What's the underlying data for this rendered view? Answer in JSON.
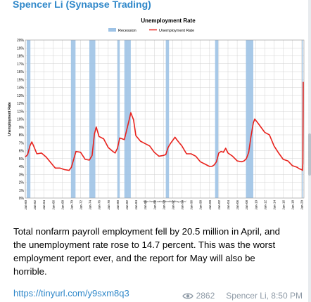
{
  "message": {
    "author": "Spencer Li (Synapse Trading)",
    "text": "Total nonfarm payroll employment fell by 20.5 million in April, and the unemployment rate rose to 14.7 percent. This was the worst employment report ever, and the report for May will also be horrible.",
    "link": "https://tinyurl.com/y9sxm8q3",
    "views": "2862",
    "signature": "Spencer Li, 8:50 PM"
  },
  "chart_data": {
    "type": "line",
    "title": "Unemployment Rate",
    "ylabel": "Unemployment Rate",
    "source": "http://www.calculatedriskblog.com/",
    "ylim": [
      0,
      20
    ],
    "yticks": [
      "0%",
      "1%",
      "2%",
      "3%",
      "4%",
      "5%",
      "6%",
      "7%",
      "8%",
      "9%",
      "10%",
      "11%",
      "12%",
      "13%",
      "14%",
      "15%",
      "16%",
      "17%",
      "18%",
      "19%",
      "20%"
    ],
    "xlim": [
      1960,
      2020.5
    ],
    "xticks": [
      "Jan-60",
      "Jan-62",
      "Jan-64",
      "Jan-66",
      "Jan-68",
      "Jan-70",
      "Jan-72",
      "Jan-74",
      "Jan-76",
      "Jan-78",
      "Jan-80",
      "Jan-82",
      "Jan-84",
      "Jan-86",
      "Jan-88",
      "Jan-90",
      "Jan-92",
      "Jan-94",
      "Jan-96",
      "Jan-98",
      "Jan-00",
      "Jan-02",
      "Jan-04",
      "Jan-06",
      "Jan-08",
      "Jan-10",
      "Jan-12",
      "Jan-14",
      "Jan-16",
      "Jan-18",
      "Jan-20"
    ],
    "legend": {
      "position": "top",
      "items": [
        {
          "name": "Recession",
          "color": "#9ec3e6"
        },
        {
          "name": "Unemployment Rate",
          "color": "#e8211b"
        }
      ]
    },
    "grid": true,
    "recessions": [
      [
        1960.3,
        1961.1
      ],
      [
        1969.9,
        1970.9
      ],
      [
        1973.9,
        1975.2
      ],
      [
        1980.0,
        1980.5
      ],
      [
        1981.5,
        1982.9
      ],
      [
        1990.5,
        1991.2
      ],
      [
        2001.2,
        2001.9
      ],
      [
        2007.9,
        2009.5
      ],
      [
        2020.1,
        2020.3
      ]
    ],
    "series": [
      {
        "name": "Unemployment Rate",
        "color": "#e8211b",
        "x": [
          1960.0,
          1960.5,
          1961.0,
          1961.4,
          1961.8,
          1962.5,
          1963.5,
          1964.5,
          1965.5,
          1966.5,
          1967.5,
          1968.5,
          1969.5,
          1970.0,
          1970.5,
          1971.0,
          1972.0,
          1973.0,
          1973.9,
          1974.5,
          1975.0,
          1975.4,
          1976.0,
          1977.0,
          1978.0,
          1979.0,
          1979.5,
          1980.0,
          1980.5,
          1981.0,
          1981.5,
          1982.0,
          1982.5,
          1982.9,
          1983.5,
          1984.0,
          1985.0,
          1986.0,
          1987.0,
          1988.0,
          1989.0,
          1990.0,
          1990.5,
          1991.0,
          1991.5,
          1992.0,
          1992.5,
          1993.0,
          1994.0,
          1995.0,
          1996.0,
          1997.0,
          1998.0,
          1999.0,
          2000.0,
          2000.5,
          2001.0,
          2001.5,
          2002.0,
          2002.5,
          2003.0,
          2003.5,
          2004.0,
          2005.0,
          2006.0,
          2007.0,
          2007.5,
          2008.0,
          2008.5,
          2009.0,
          2009.5,
          2009.8,
          2010.5,
          2011.0,
          2012.0,
          2013.0,
          2014.0,
          2015.0,
          2016.0,
          2017.0,
          2018.0,
          2019.0,
          2019.5,
          2020.0,
          2020.17,
          2020.25,
          2020.33
        ],
        "values": [
          5.2,
          5.5,
          6.6,
          7.1,
          6.6,
          5.6,
          5.7,
          5.2,
          4.5,
          3.8,
          3.8,
          3.6,
          3.5,
          3.9,
          4.9,
          5.9,
          5.8,
          4.9,
          4.8,
          5.4,
          8.1,
          9.0,
          7.8,
          7.5,
          6.4,
          5.9,
          5.7,
          6.3,
          7.6,
          7.5,
          7.4,
          8.6,
          9.8,
          10.8,
          9.9,
          7.9,
          7.2,
          6.9,
          6.6,
          5.8,
          5.3,
          5.4,
          5.5,
          6.4,
          6.9,
          7.3,
          7.7,
          7.3,
          6.6,
          5.6,
          5.6,
          5.3,
          4.6,
          4.3,
          4.0,
          4.0,
          4.2,
          4.6,
          5.7,
          5.9,
          5.8,
          6.3,
          5.7,
          5.3,
          4.7,
          4.6,
          4.7,
          5.0,
          5.8,
          7.8,
          9.5,
          10.0,
          9.5,
          9.1,
          8.3,
          8.0,
          6.6,
          5.7,
          4.9,
          4.7,
          4.1,
          3.9,
          3.7,
          3.6,
          3.5,
          4.4,
          14.7
        ]
      }
    ]
  }
}
